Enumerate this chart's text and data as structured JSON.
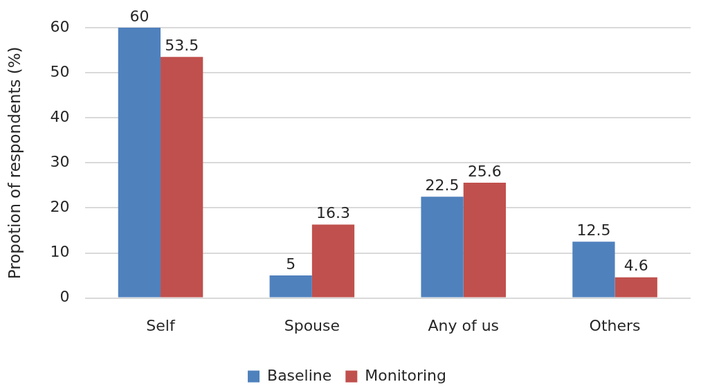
{
  "chart_data": {
    "type": "bar",
    "ylabel": "Propotion of respondents (%)",
    "categories": [
      "Self",
      "Spouse",
      "Any of us",
      "Others"
    ],
    "series": [
      {
        "name": "Baseline",
        "color": "#4f81bd",
        "values": [
          60,
          5,
          22.5,
          12.5
        ]
      },
      {
        "name": "Monitoring",
        "color": "#c0504d",
        "values": [
          53.5,
          16.3,
          25.6,
          4.6
        ]
      }
    ],
    "ylim": [
      0,
      60
    ],
    "yticks": [
      0,
      10,
      20,
      30,
      40,
      50,
      60
    ],
    "grid": "y",
    "legend": "bottom",
    "data_labels": true
  }
}
